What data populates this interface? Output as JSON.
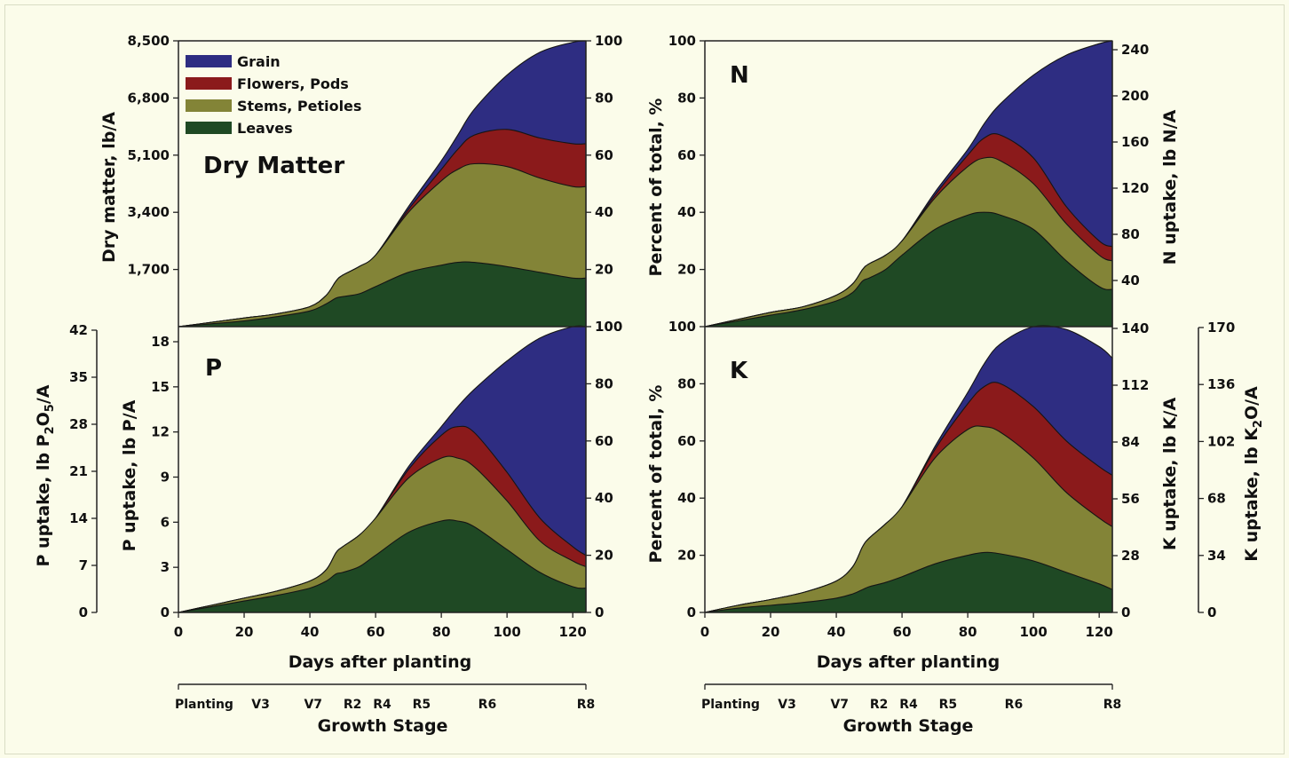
{
  "colors": {
    "grain": "#2e2d82",
    "flowers": "#8b1a1b",
    "stems": "#838437",
    "leaves": "#1f4924"
  },
  "legend": [
    "Grain",
    "Flowers, Pods",
    "Stems, Petioles",
    "Leaves"
  ],
  "x_axis": {
    "label": "Days after planting",
    "ticks": [
      "0",
      "20",
      "40",
      "60",
      "80",
      "100",
      "120"
    ]
  },
  "growth_stage": {
    "label": "Growth Stage",
    "stages": [
      {
        "name": "Planting",
        "day": 0
      },
      {
        "name": "V3",
        "day": 25
      },
      {
        "name": "V7",
        "day": 41
      },
      {
        "name": "R2",
        "day": 53
      },
      {
        "name": "R4",
        "day": 62
      },
      {
        "name": "R5",
        "day": 74
      },
      {
        "name": "R6",
        "day": 94
      },
      {
        "name": "R8",
        "day": 124
      }
    ]
  },
  "chart_data": [
    {
      "type": "area",
      "panel_label": "Dry Matter",
      "ylabel_left": "Dry matter, lb/A",
      "yticks_left": [
        "1,700",
        "3,400",
        "5,100",
        "6,800",
        "8,500"
      ],
      "ylabel_right": "",
      "yticks_right": [
        "20",
        "40",
        "60",
        "80",
        "100"
      ],
      "ylim_percent": [
        0,
        100
      ],
      "x": [
        0,
        10,
        20,
        30,
        40,
        45,
        48,
        50,
        55,
        60,
        70,
        80,
        85,
        90,
        100,
        110,
        120,
        124
      ],
      "series": [
        {
          "name": "Leaves",
          "values": [
            0,
            1,
            2,
            3.5,
            5.5,
            8,
            10,
            10.5,
            11.5,
            14,
            19,
            21.5,
            22.5,
            22.5,
            21,
            19,
            17,
            17
          ]
        },
        {
          "name": "Stems, Petioles",
          "values": [
            0,
            1.5,
            3,
            4.5,
            7,
            11,
            16,
            18,
            21,
            25,
            40,
            51,
            55,
            57,
            56,
            52,
            49,
            49
          ]
        },
        {
          "name": "Flowers, Pods",
          "values": [
            0,
            1.5,
            3,
            4.5,
            7,
            11,
            16,
            18,
            21,
            25,
            41,
            55,
            62,
            67,
            69,
            66,
            64,
            64
          ]
        },
        {
          "name": "Grain",
          "values": [
            0,
            1.5,
            3,
            4.5,
            7,
            11,
            16,
            18,
            21,
            25,
            42,
            58,
            67,
            76,
            88,
            96,
            99.5,
            100
          ]
        }
      ]
    },
    {
      "type": "area",
      "panel_label": "N",
      "ylabel_left": "Percent of total, %",
      "yticks_left": [
        "20",
        "40",
        "60",
        "80",
        "100"
      ],
      "ylabel_right": "N uptake, lb N/A",
      "yticks_right": [
        "40",
        "80",
        "120",
        "160",
        "200",
        "240"
      ],
      "ylim_percent": [
        0,
        100
      ],
      "x": [
        0,
        10,
        20,
        30,
        40,
        45,
        48,
        50,
        55,
        60,
        70,
        80,
        85,
        90,
        100,
        110,
        120,
        124
      ],
      "series": [
        {
          "name": "Leaves",
          "values": [
            0,
            2,
            4,
            6,
            9,
            12,
            16,
            17,
            20,
            25,
            34,
            39,
            40,
            39,
            34,
            23,
            14,
            13
          ]
        },
        {
          "name": "Stems, Petioles",
          "values": [
            0,
            2.5,
            5,
            7,
            11,
            15,
            20,
            22,
            25,
            30,
            45,
            56,
            59,
            58,
            50,
            36,
            25,
            23
          ]
        },
        {
          "name": "Flowers, Pods",
          "values": [
            0,
            2.5,
            5,
            7,
            11,
            15,
            20,
            22,
            25,
            30,
            46,
            60,
            66,
            67,
            59,
            42,
            30,
            28
          ]
        },
        {
          "name": "Grain",
          "values": [
            0,
            2.5,
            5,
            7,
            11,
            15,
            20,
            22,
            25,
            30,
            47,
            62,
            71,
            78,
            88,
            95,
            99,
            100
          ]
        }
      ]
    },
    {
      "type": "area",
      "panel_label": "P",
      "ylabel_left": "P uptake, lb P/A",
      "yticks_left": [
        "0",
        "3",
        "6",
        "9",
        "12",
        "15",
        "18"
      ],
      "ylabel_outer": "P uptake, lb P2O5/A",
      "yticks_outer": [
        "0",
        "7",
        "14",
        "21",
        "28",
        "35",
        "42"
      ],
      "ylabel_right": "",
      "yticks_right": [
        "0",
        "20",
        "40",
        "60",
        "80",
        "100"
      ],
      "ylim_percent": [
        0,
        100
      ],
      "x": [
        0,
        10,
        20,
        30,
        40,
        45,
        48,
        50,
        55,
        60,
        70,
        80,
        85,
        90,
        100,
        110,
        120,
        124
      ],
      "series": [
        {
          "name": "Leaves",
          "values": [
            0,
            2,
            4,
            6,
            8.5,
            11,
            13.5,
            14,
            16,
            20,
            28,
            32,
            32,
            30,
            22,
            14,
            9,
            8.5
          ]
        },
        {
          "name": "Stems, Petioles",
          "values": [
            0,
            2.5,
            5,
            7.5,
            11,
            15,
            21,
            23,
            27,
            33,
            47,
            54,
            54,
            51,
            39,
            25,
            18,
            16
          ]
        },
        {
          "name": "Flowers, Pods",
          "values": [
            0,
            2.5,
            5,
            7.5,
            11,
            15,
            21,
            23,
            27,
            33,
            50,
            62,
            65,
            63,
            49,
            33,
            23,
            20
          ]
        },
        {
          "name": "Grain",
          "values": [
            0,
            2.5,
            5,
            7.5,
            11,
            15,
            21,
            23,
            27,
            33,
            51,
            65,
            72,
            78,
            88,
            96,
            100,
            100
          ]
        }
      ]
    },
    {
      "type": "area",
      "panel_label": "K",
      "ylabel_left": "Percent of total, %",
      "yticks_left": [
        "0",
        "20",
        "40",
        "60",
        "80",
        "100"
      ],
      "ylabel_right": "K uptake, lb K/A",
      "yticks_right": [
        "0",
        "28",
        "56",
        "84",
        "112",
        "140"
      ],
      "ylabel_outer": "K uptake, lb K2O/A",
      "yticks_outer": [
        "0",
        "34",
        "68",
        "102",
        "136",
        "170"
      ],
      "ylim_percent": [
        0,
        100
      ],
      "x": [
        0,
        10,
        20,
        30,
        40,
        45,
        48,
        50,
        55,
        60,
        70,
        80,
        85,
        90,
        100,
        110,
        120,
        124
      ],
      "series": [
        {
          "name": "Leaves",
          "values": [
            0,
            1.5,
            2.5,
            3.5,
            5,
            6.5,
            8,
            9,
            10.5,
            12.5,
            17,
            20,
            21,
            20.5,
            18,
            14,
            10,
            8
          ]
        },
        {
          "name": "Stems, Petioles",
          "values": [
            0,
            2.5,
            4.5,
            7,
            11,
            16,
            23,
            26,
            31,
            37,
            54,
            64,
            65,
            63,
            54,
            42,
            33,
            30
          ]
        },
        {
          "name": "Flowers, Pods",
          "values": [
            0,
            2.5,
            4.5,
            7,
            11,
            16,
            23,
            26,
            31,
            37,
            57,
            73,
            79,
            80,
            72,
            60,
            51,
            48
          ]
        },
        {
          "name": "Grain",
          "values": [
            0,
            2.5,
            4.5,
            7,
            11,
            16,
            23,
            26,
            31,
            37,
            58,
            77,
            87,
            94,
            100,
            99,
            93,
            89
          ]
        }
      ]
    }
  ]
}
